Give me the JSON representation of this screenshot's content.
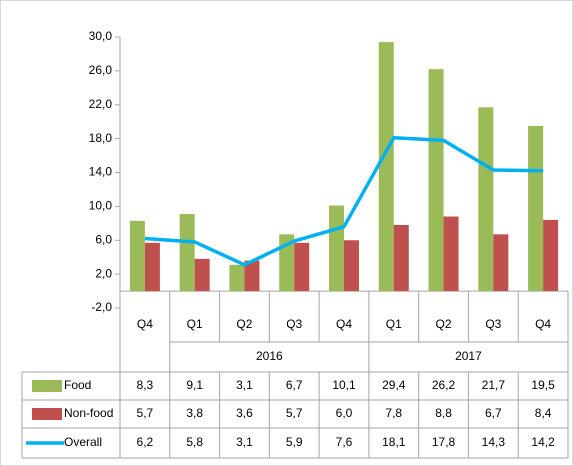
{
  "chart_data": {
    "type": "bar-line-table",
    "categories": [
      "Q4",
      "Q1",
      "Q2",
      "Q3",
      "Q4",
      "Q1",
      "Q2",
      "Q3",
      "Q4"
    ],
    "groups": [
      {
        "label": null,
        "count": 1
      },
      {
        "label": "2016",
        "count": 4
      },
      {
        "label": "2017",
        "count": 4
      }
    ],
    "series": [
      {
        "name": "Food",
        "type": "bar",
        "color": "#9bbb59",
        "values": [
          8.3,
          9.1,
          3.1,
          6.7,
          10.1,
          29.4,
          26.2,
          21.7,
          19.5
        ],
        "value_labels": [
          "8,3",
          "9,1",
          "3,1",
          "6,7",
          "10,1",
          "29,4",
          "26,2",
          "21,7",
          "19,5"
        ]
      },
      {
        "name": "Non-food",
        "type": "bar",
        "color": "#c0504d",
        "values": [
          5.7,
          3.8,
          3.6,
          5.7,
          6.0,
          7.8,
          8.8,
          6.7,
          8.4
        ],
        "value_labels": [
          "5,7",
          "3,8",
          "3,6",
          "5,7",
          "6,0",
          "7,8",
          "8,8",
          "6,7",
          "8,4"
        ]
      },
      {
        "name": "Overall",
        "type": "line",
        "color": "#00b0f0",
        "values": [
          6.2,
          5.8,
          3.1,
          5.9,
          7.6,
          18.1,
          17.8,
          14.3,
          14.2
        ],
        "value_labels": [
          "6,2",
          "5,8",
          "3,1",
          "5,9",
          "7,6",
          "18,1",
          "17,8",
          "14,3",
          "14,2"
        ]
      }
    ],
    "ylim": [
      -2,
      30
    ],
    "yticks": [
      {
        "value": -2,
        "label": "-2,0"
      },
      {
        "value": 2,
        "label": "2,0"
      },
      {
        "value": 6,
        "label": "6,0"
      },
      {
        "value": 10,
        "label": "10,0"
      },
      {
        "value": 14,
        "label": "14,0"
      },
      {
        "value": 18,
        "label": "18,0"
      },
      {
        "value": 22,
        "label": "22,0"
      },
      {
        "value": 26,
        "label": "26,0"
      },
      {
        "value": 30,
        "label": "30,0"
      }
    ],
    "grid": false
  }
}
